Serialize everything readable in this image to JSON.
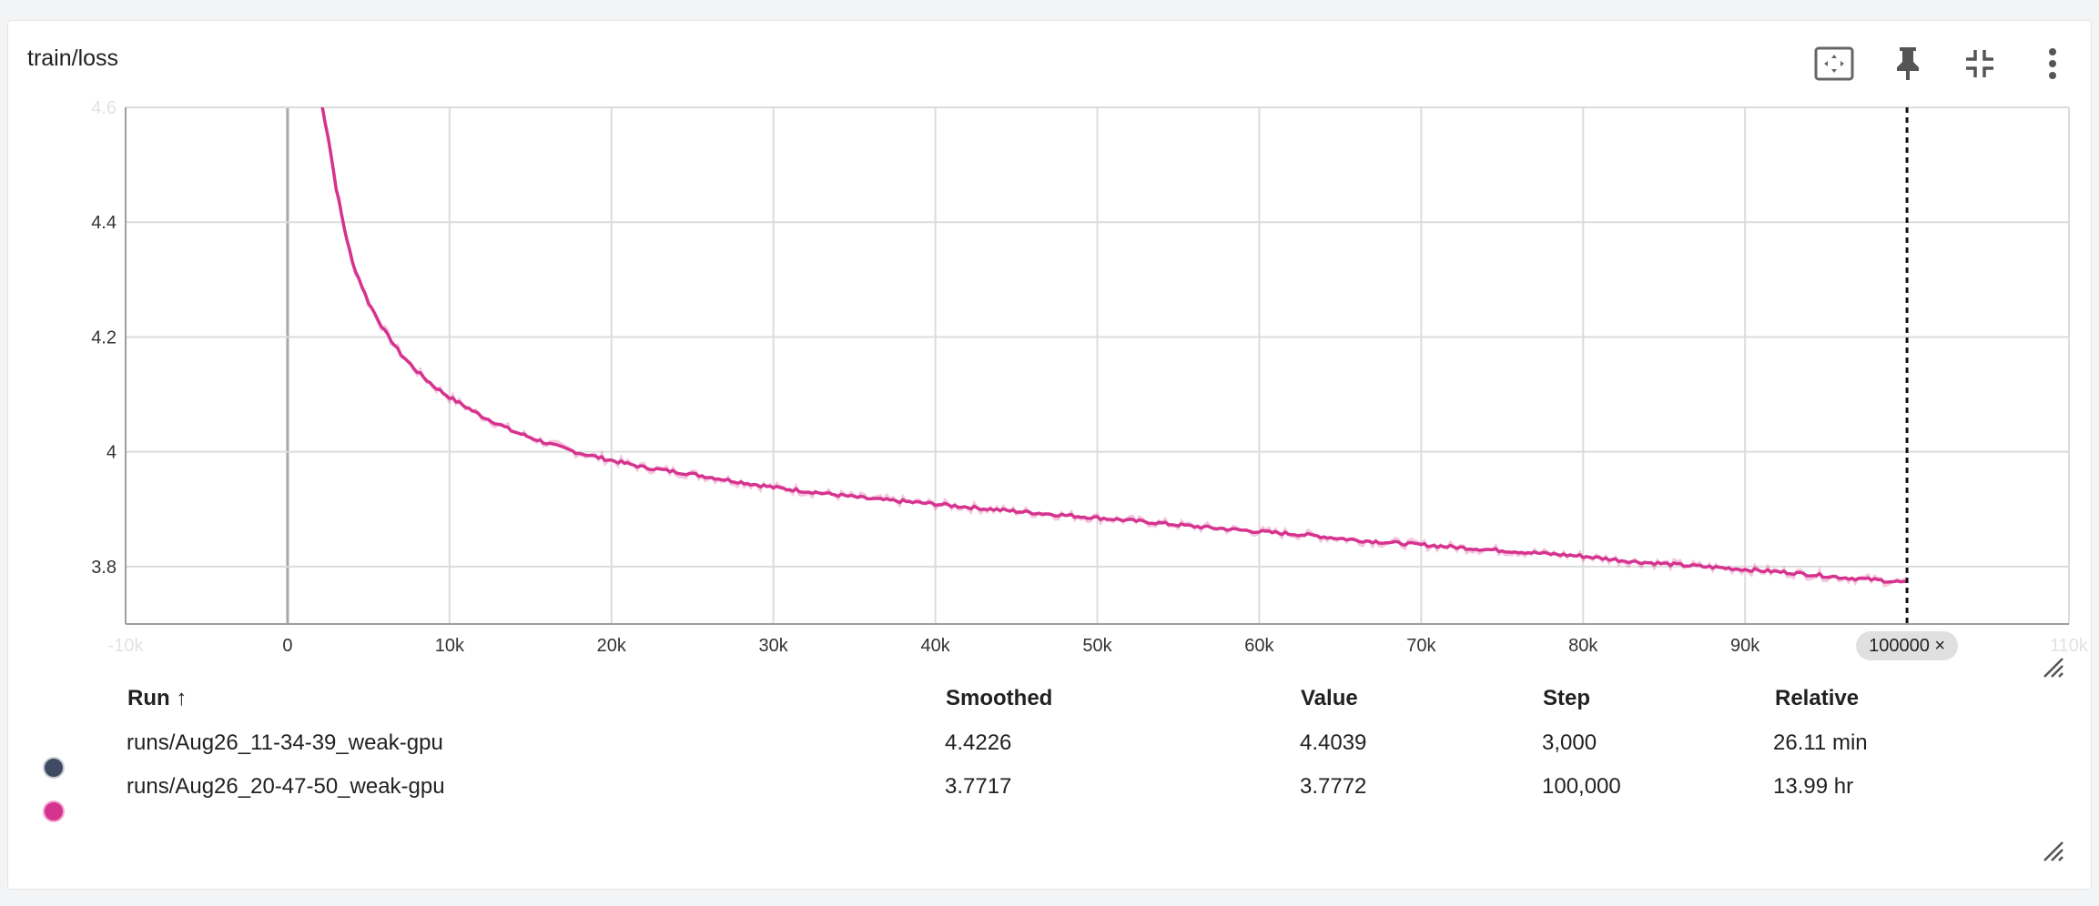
{
  "card": {
    "title": "train/loss",
    "toolbar": {
      "fit_icon": "fit-domain-icon",
      "pin_icon": "pin-icon",
      "collapse_icon": "collapse-icon",
      "more_icon": "more-vert-icon"
    }
  },
  "chart_data": {
    "type": "line",
    "xlim": [
      -10000,
      110000
    ],
    "ylim": [
      3.7,
      4.6
    ],
    "x_ticks": [
      {
        "value": -10000,
        "label": "-10k"
      },
      {
        "value": 0,
        "label": "0"
      },
      {
        "value": 10000,
        "label": "10k"
      },
      {
        "value": 20000,
        "label": "20k"
      },
      {
        "value": 30000,
        "label": "30k"
      },
      {
        "value": 40000,
        "label": "40k"
      },
      {
        "value": 50000,
        "label": "50k"
      },
      {
        "value": 60000,
        "label": "60k"
      },
      {
        "value": 70000,
        "label": "70k"
      },
      {
        "value": 80000,
        "label": "80k"
      },
      {
        "value": 90000,
        "label": "90k"
      },
      {
        "value": 110000,
        "label": "110k"
      }
    ],
    "y_ticks": [
      {
        "value": 3.8,
        "label": "3.8"
      },
      {
        "value": 4.0,
        "label": "4"
      },
      {
        "value": 4.2,
        "label": "4.2"
      },
      {
        "value": 4.4,
        "label": "4.4"
      },
      {
        "value": 4.6,
        "label": "4.6"
      }
    ],
    "grid": true,
    "cursor": {
      "step": 100000,
      "label": "100000 ×"
    },
    "series": [
      {
        "name": "runs/Aug26_20-47-50_weak-gpu",
        "color": "#d6338f",
        "points": [
          [
            2000,
            4.62
          ],
          [
            2500,
            4.55
          ],
          [
            3000,
            4.46
          ],
          [
            3500,
            4.39
          ],
          [
            4000,
            4.33
          ],
          [
            5000,
            4.26
          ],
          [
            6000,
            4.21
          ],
          [
            7000,
            4.17
          ],
          [
            8000,
            4.14
          ],
          [
            9000,
            4.115
          ],
          [
            10000,
            4.095
          ],
          [
            12000,
            4.062
          ],
          [
            14000,
            4.035
          ],
          [
            16000,
            4.015
          ],
          [
            18000,
            3.998
          ],
          [
            20000,
            3.985
          ],
          [
            22000,
            3.973
          ],
          [
            25000,
            3.961
          ],
          [
            28000,
            3.947
          ],
          [
            30000,
            3.938
          ],
          [
            33000,
            3.928
          ],
          [
            36000,
            3.918
          ],
          [
            40000,
            3.909
          ],
          [
            43000,
            3.901
          ],
          [
            46000,
            3.894
          ],
          [
            50000,
            3.885
          ],
          [
            53000,
            3.878
          ],
          [
            56000,
            3.87
          ],
          [
            60000,
            3.861
          ],
          [
            63000,
            3.855
          ],
          [
            66000,
            3.846
          ],
          [
            70000,
            3.838
          ],
          [
            73000,
            3.832
          ],
          [
            76000,
            3.826
          ],
          [
            80000,
            3.818
          ],
          [
            83000,
            3.809
          ],
          [
            86000,
            3.803
          ],
          [
            90000,
            3.795
          ],
          [
            93000,
            3.789
          ],
          [
            96000,
            3.781
          ],
          [
            98000,
            3.777
          ],
          [
            100000,
            3.772
          ]
        ]
      }
    ]
  },
  "table": {
    "headers": {
      "run": "Run ↑",
      "smoothed": "Smoothed",
      "value": "Value",
      "step": "Step",
      "relative": "Relative"
    },
    "rows": [
      {
        "color": "#3f4b63",
        "run": "runs/Aug26_11-34-39_weak-gpu",
        "smoothed": "4.4226",
        "value": "4.4039",
        "step": "3,000",
        "relative": "26.11 min"
      },
      {
        "color": "#d6338f",
        "run": "runs/Aug26_20-47-50_weak-gpu",
        "smoothed": "3.7717",
        "value": "3.7772",
        "step": "100,000",
        "relative": "13.99 hr"
      }
    ]
  }
}
